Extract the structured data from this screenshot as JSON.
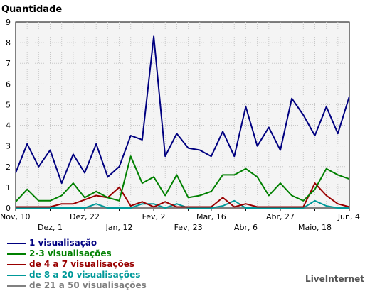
{
  "chart_data": {
    "type": "line",
    "title": "Quantidade",
    "ylim": [
      0,
      9
    ],
    "yticks": [
      0,
      1,
      2,
      3,
      4,
      5,
      6,
      7,
      8,
      9
    ],
    "grid": true,
    "x_tick_labels_row1": [
      "Nov, 10",
      "Dez, 22",
      "Fev, 2",
      "Mar, 16",
      "Abr, 27",
      "Jun, 4"
    ],
    "x_tick_labels_row2": [
      "Dez, 1",
      "Jan, 12",
      "Fev, 23",
      "Abr, 6",
      "Maio, 18"
    ],
    "series": [
      {
        "name": "1 visualisação",
        "color": "#000080",
        "values": [
          1.7,
          3.1,
          2.0,
          2.8,
          1.2,
          2.6,
          1.7,
          3.1,
          1.5,
          2.0,
          3.5,
          3.3,
          8.3,
          2.5,
          3.6,
          2.9,
          2.8,
          2.5,
          3.7,
          2.5,
          4.9,
          3.0,
          3.9,
          2.8,
          5.3,
          4.5,
          3.5,
          4.9,
          3.6,
          5.4
        ]
      },
      {
        "name": "2-3 visualisações",
        "color": "#008000",
        "values": [
          0.3,
          0.9,
          0.35,
          0.35,
          0.6,
          1.2,
          0.5,
          0.8,
          0.5,
          0.35,
          2.5,
          1.2,
          1.5,
          0.6,
          1.6,
          0.5,
          0.6,
          0.8,
          1.6,
          1.6,
          1.9,
          1.5,
          0.6,
          1.2,
          0.6,
          0.35,
          0.9,
          1.9,
          1.6,
          1.4
        ]
      },
      {
        "name": "de 4 a 7 visualisações",
        "color": "#990000",
        "values": [
          0.05,
          0.05,
          0.05,
          0.05,
          0.2,
          0.2,
          0.4,
          0.6,
          0.5,
          1.0,
          0.1,
          0.3,
          0.05,
          0.3,
          0.05,
          0.05,
          0.05,
          0.05,
          0.5,
          0.05,
          0.2,
          0.05,
          0.05,
          0.05,
          0.05,
          0.05,
          1.2,
          0.6,
          0.2,
          0.05
        ]
      },
      {
        "name": "de 8 a 20 visualisações",
        "color": "#009999",
        "values": [
          0,
          0,
          0,
          0,
          0,
          0,
          0,
          0.2,
          0,
          0,
          0,
          0.2,
          0.2,
          0,
          0.2,
          0,
          0,
          0,
          0.1,
          0.35,
          0,
          0,
          0,
          0,
          0,
          0,
          0.35,
          0.1,
          0,
          0
        ]
      },
      {
        "name": "de 21 a 50 visualisações",
        "color": "#808080",
        "values": [
          0,
          0,
          0,
          0,
          0,
          0,
          0,
          0,
          0,
          0,
          0,
          0,
          0,
          0,
          0,
          0,
          0,
          0,
          0,
          0,
          0,
          0,
          0,
          0,
          0,
          0,
          0,
          0,
          0,
          0
        ]
      }
    ]
  },
  "branding": {
    "text": "LiveInternet"
  }
}
